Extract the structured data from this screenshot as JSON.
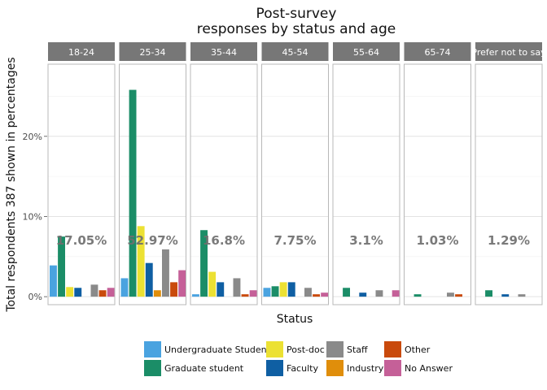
{
  "chart_data": {
    "type": "bar",
    "title_lines": [
      "Post-survey",
      "responses by status and age"
    ],
    "xlabel": "Status",
    "ylabel": "Total respondents 387 shown in percentages",
    "ylim": [
      -1,
      29
    ],
    "y_ticks": [
      {
        "value": 0,
        "label": "0%"
      },
      {
        "value": 10,
        "label": "10%"
      },
      {
        "value": 20,
        "label": "20%"
      }
    ],
    "grid": true,
    "legend_position": "bottom",
    "series": [
      {
        "name": "Undergraduate Student",
        "color": "#4aa3e0"
      },
      {
        "name": "Graduate student",
        "color": "#1b8d67"
      },
      {
        "name": "Post-doc",
        "color": "#ece133"
      },
      {
        "name": "Faculty",
        "color": "#0f5fa3"
      },
      {
        "name": "Industry",
        "color": "#e08e0b"
      },
      {
        "name": "Staff",
        "color": "#8a8a8a"
      },
      {
        "name": "Other",
        "color": "#c94a0c"
      },
      {
        "name": "No Answer",
        "color": "#c56098"
      }
    ],
    "panels": [
      {
        "label": "18-24",
        "total": "17.05%",
        "values": [
          3.9,
          7.5,
          1.2,
          1.1,
          0,
          1.5,
          0.8,
          1.1
        ]
      },
      {
        "label": "25-34",
        "total": "52.97%",
        "values": [
          2.3,
          25.8,
          8.8,
          4.2,
          0.8,
          5.9,
          1.8,
          3.3
        ]
      },
      {
        "label": "35-44",
        "total": "16.8%",
        "values": [
          0.3,
          8.3,
          3.1,
          1.8,
          0,
          2.3,
          0.3,
          0.8
        ]
      },
      {
        "label": "45-54",
        "total": "7.75%",
        "values": [
          1.1,
          1.3,
          1.8,
          1.8,
          0,
          1.1,
          0.3,
          0.5
        ]
      },
      {
        "label": "55-64",
        "total": "3.1%",
        "values": [
          0,
          1.1,
          0,
          0.5,
          0,
          0.8,
          0,
          0.8
        ]
      },
      {
        "label": "65-74",
        "total": "1.03%",
        "values": [
          0,
          0.3,
          0,
          0,
          0,
          0.5,
          0.3,
          0
        ]
      },
      {
        "label": "Prefer not to say",
        "total": "1.29%",
        "values": [
          0,
          0.8,
          0,
          0.3,
          0,
          0.3,
          0,
          0
        ]
      }
    ]
  }
}
